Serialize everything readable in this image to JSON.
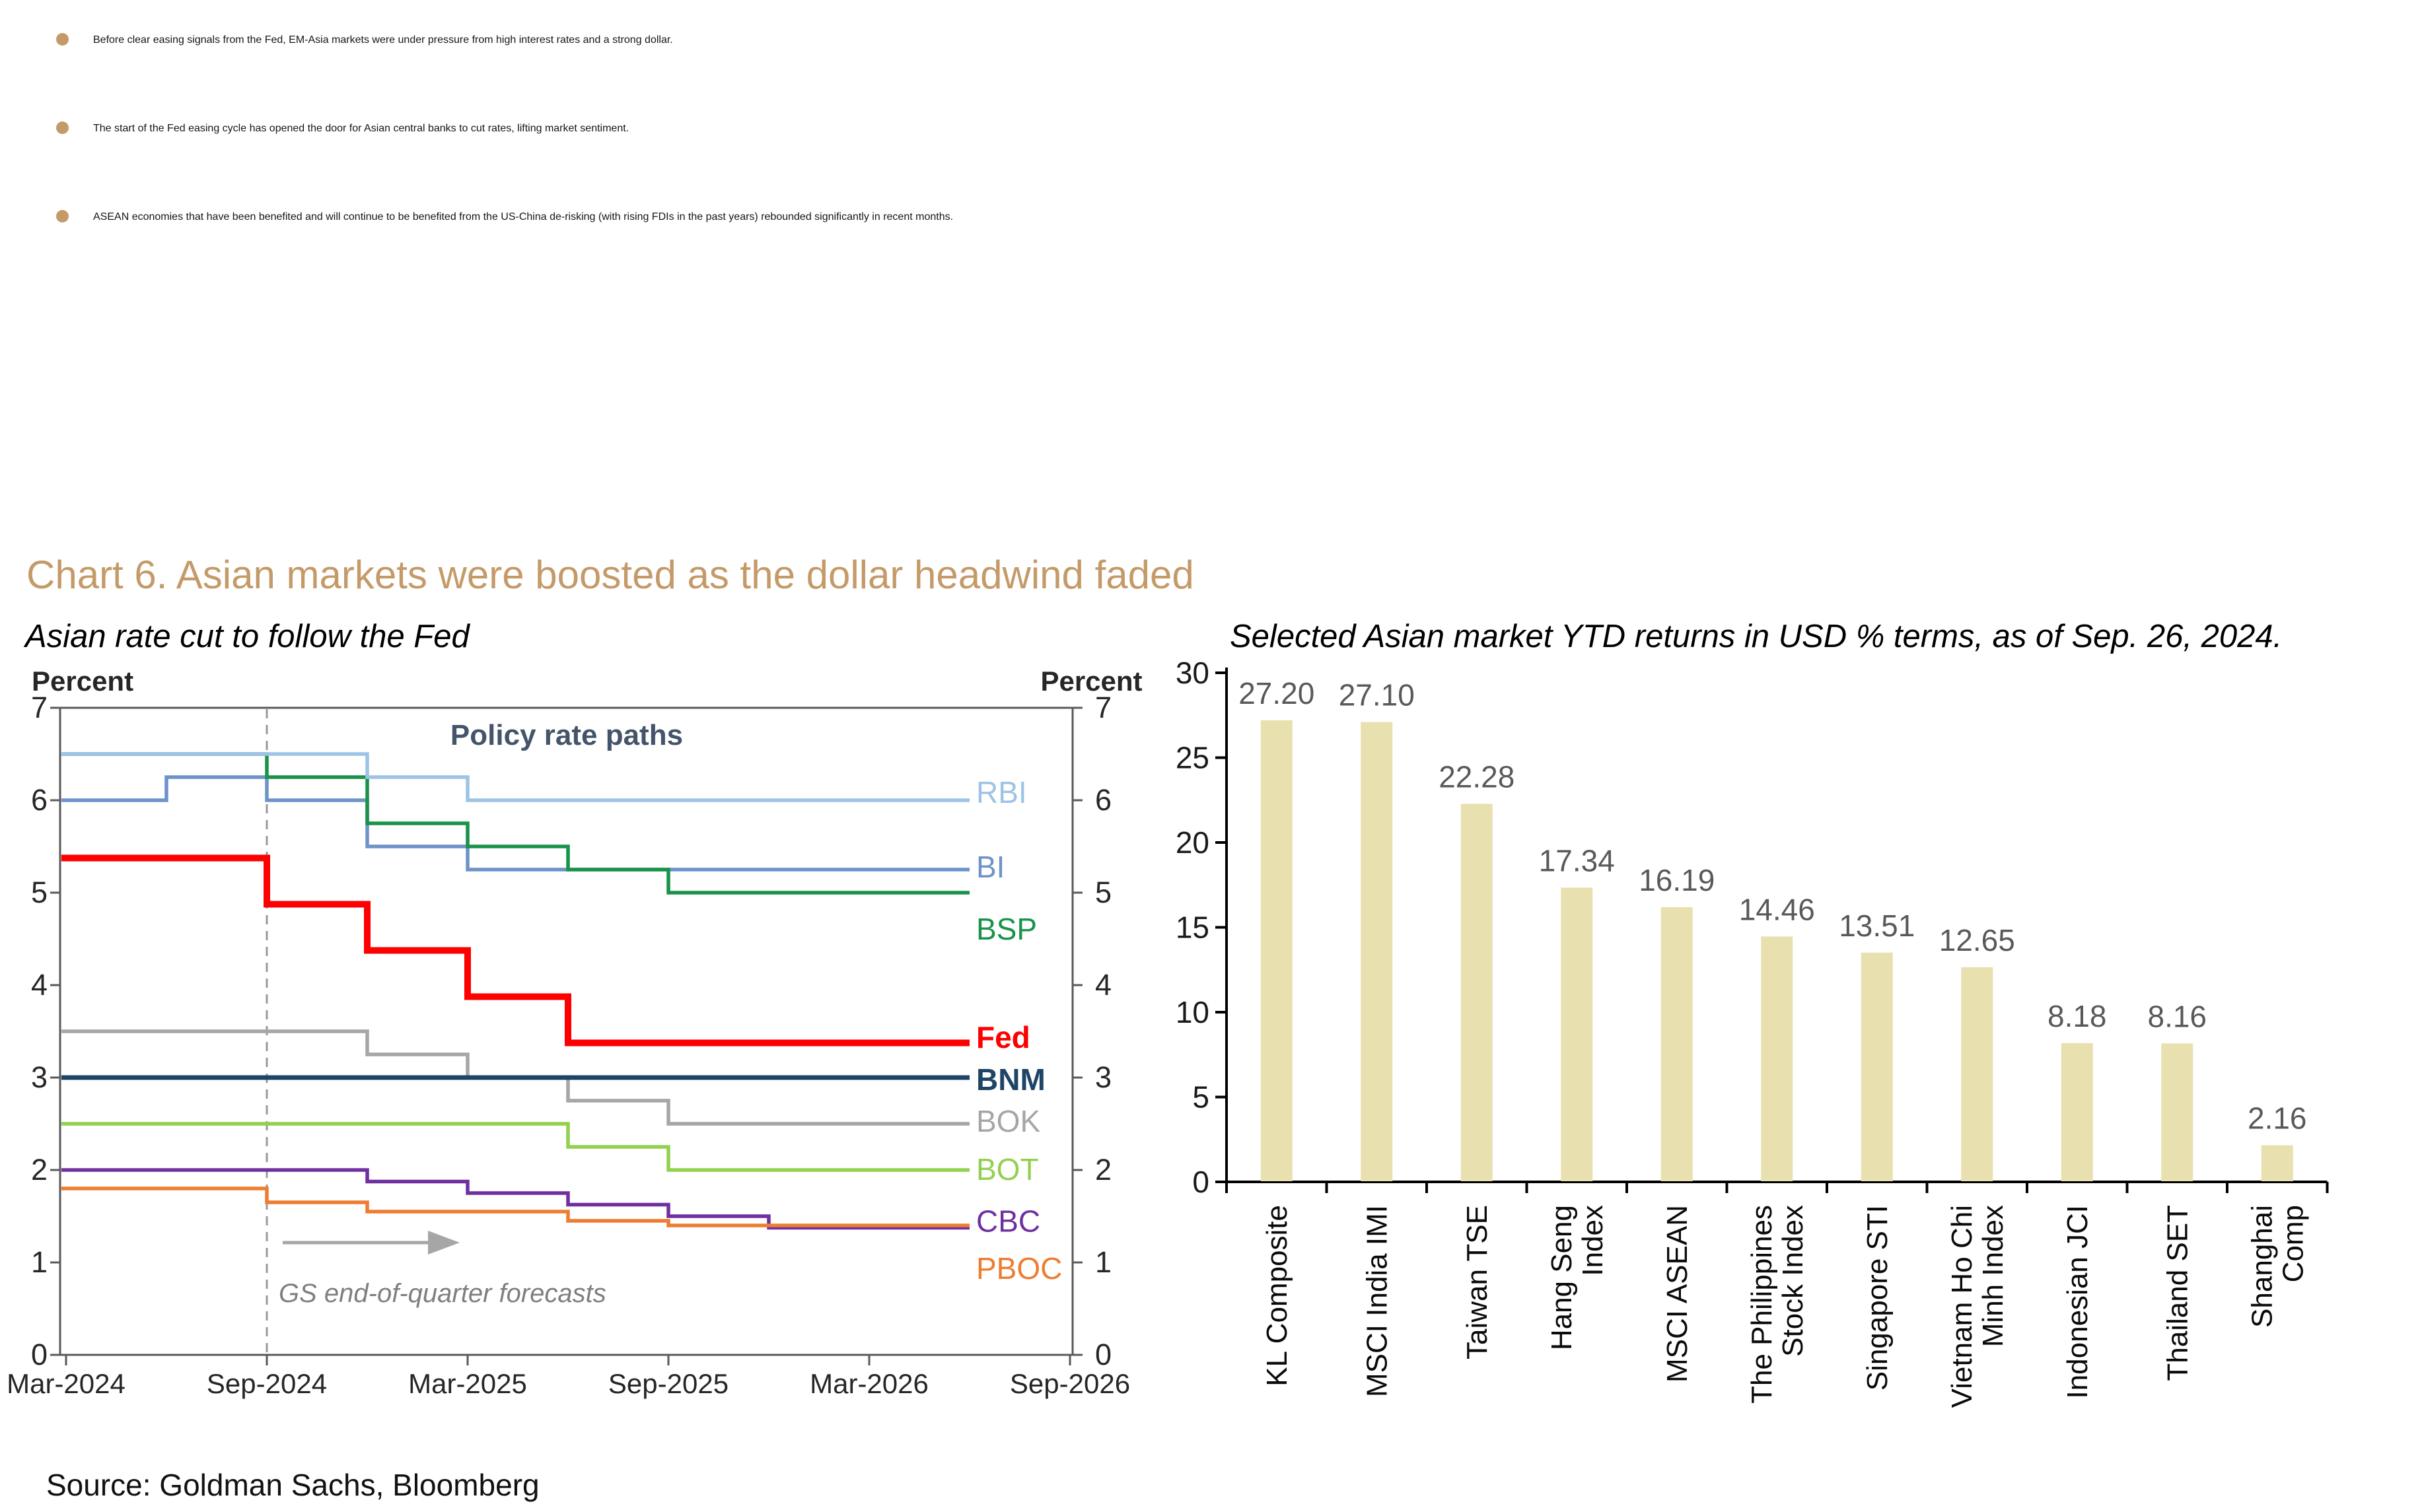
{
  "accent_color": "#C49A68",
  "bullets": [
    "Before clear easing signals from the Fed, EM-Asia markets were under pressure from high interest rates and a strong dollar.",
    "The start of the Fed easing cycle has opened the door for Asian central banks to cut rates, lifting market sentiment.",
    "ASEAN economies that have been benefited and will continue to be benefited from the US-China de-risking (with rising FDIs in the past years) rebounded significantly in recent months."
  ],
  "section_title": "Chart 6. Asian markets were boosted as the dollar headwind faded",
  "source": "Source: Goldman Sachs, Bloomberg",
  "chart_data": [
    {
      "type": "line",
      "subtype": "step",
      "title": "Asian rate cut to follow the Fed",
      "axis_label_left": "Percent",
      "axis_label_right": "Percent",
      "ylim": [
        0,
        7
      ],
      "yticks": [
        0,
        1,
        2,
        3,
        4,
        5,
        6,
        7
      ],
      "xticks": [
        "Mar-2024",
        "Sep-2024",
        "Mar-2025",
        "Sep-2025",
        "Mar-2026",
        "Sep-2026"
      ],
      "x_quarters": [
        "Mar-2024",
        "Jun-2024",
        "Sep-2024",
        "Dec-2024",
        "Mar-2025",
        "Jun-2025",
        "Sep-2025",
        "Dec-2025",
        "Mar-2026",
        "Jun-2026"
      ],
      "annotations": {
        "plot_label": "Policy rate paths",
        "plot_label_color": "#44546A",
        "forecast_note": "GS end-of-quarter forecasts",
        "forecast_note_color": "#7F7F7F",
        "forecast_divider_x": "Sep-2024",
        "divider_color": "#999999"
      },
      "grid": false,
      "legend_position": "right-inside",
      "series": [
        {
          "name": "BOK",
          "color": "#A6A6A6",
          "bold": false,
          "width": 5.5,
          "label_y": 2.52,
          "values": [
            3.5,
            3.5,
            3.5,
            3.25,
            3.0,
            2.75,
            2.5,
            2.5,
            2.5,
            2.5
          ]
        },
        {
          "name": "BNM",
          "color": "#1F4566",
          "bold": true,
          "width": 7,
          "label_y": 2.97,
          "values": [
            3.0,
            3.0,
            3.0,
            3.0,
            3.0,
            3.0,
            3.0,
            3.0,
            3.0,
            3.0
          ]
        },
        {
          "name": "BI",
          "color": "#6E93C9",
          "bold": false,
          "width": 5.5,
          "label_y": 5.27,
          "values": [
            6.0,
            6.25,
            6.0,
            5.5,
            5.25,
            5.25,
            5.25,
            5.25,
            5.25,
            5.25
          ]
        },
        {
          "name": "BSP",
          "color": "#189349",
          "bold": false,
          "width": 5.5,
          "label_y": 4.6,
          "values": [
            6.5,
            6.5,
            6.25,
            5.75,
            5.5,
            5.25,
            5.0,
            5.0,
            5.0,
            5.0
          ]
        },
        {
          "name": "RBI",
          "color": "#9DC3E6",
          "bold": false,
          "width": 5.5,
          "label_y": 6.08,
          "values": [
            6.5,
            6.5,
            6.5,
            6.25,
            6.0,
            6.0,
            6.0,
            6.0,
            6.0,
            6.0
          ]
        },
        {
          "name": "BOT",
          "color": "#92D050",
          "bold": false,
          "width": 5.5,
          "label_y": 2.0,
          "values": [
            2.5,
            2.5,
            2.5,
            2.5,
            2.5,
            2.25,
            2.0,
            2.0,
            2.0,
            2.0
          ]
        },
        {
          "name": "CBC",
          "color": "#7030A0",
          "bold": false,
          "width": 5.5,
          "label_y": 1.44,
          "values": [
            2.0,
            2.0,
            2.0,
            1.875,
            1.75,
            1.625,
            1.5,
            1.375,
            1.375,
            1.375
          ]
        },
        {
          "name": "PBOC",
          "color": "#ED7D31",
          "bold": false,
          "width": 5.5,
          "label_y": 0.93,
          "values": [
            1.8,
            1.8,
            1.65,
            1.55,
            1.55,
            1.45,
            1.4,
            1.4,
            1.4,
            1.4
          ]
        },
        {
          "name": "Fed",
          "color": "#FE0000",
          "bold": true,
          "width": 10,
          "label_y": 3.43,
          "values": [
            5.375,
            5.375,
            4.875,
            4.375,
            3.875,
            3.375,
            3.375,
            3.375,
            3.375,
            3.375
          ]
        }
      ]
    },
    {
      "type": "bar",
      "title": "Selected Asian market YTD returns in USD % terms, as of Sep. 26, 2024.",
      "categories": [
        "KL Composite",
        "MSCI India IMI",
        "Taiwan TSE",
        "Hang Seng Index",
        "MSCI ASEAN",
        "The Philippines Stock Index",
        "Singapore STI",
        "Vietnam Ho Chi Minh Index",
        "Indonesian JCI",
        "Thailand SET",
        "Shanghai Comp"
      ],
      "category_lines": [
        [
          "KL Composite"
        ],
        [
          "MSCI India IMI"
        ],
        [
          "Taiwan TSE"
        ],
        [
          "Hang Seng",
          "Index"
        ],
        [
          "MSCI ASEAN"
        ],
        [
          "The Philippines",
          "Stock Index"
        ],
        [
          "Singapore STI"
        ],
        [
          "Vietnam Ho Chi",
          "Minh Index"
        ],
        [
          "Indonesian JCI"
        ],
        [
          "Thailand SET"
        ],
        [
          "Shanghai",
          "Comp"
        ]
      ],
      "values": [
        27.2,
        27.1,
        22.28,
        17.34,
        16.19,
        14.46,
        13.51,
        12.65,
        8.18,
        8.16,
        2.16
      ],
      "ylim": [
        0,
        30
      ],
      "yticks": [
        0,
        5,
        10,
        15,
        20,
        25,
        30
      ],
      "grid": false,
      "bar_color": "#E8E0AF",
      "value_label_color": "#595959",
      "xlabel": "",
      "ylabel": ""
    }
  ]
}
